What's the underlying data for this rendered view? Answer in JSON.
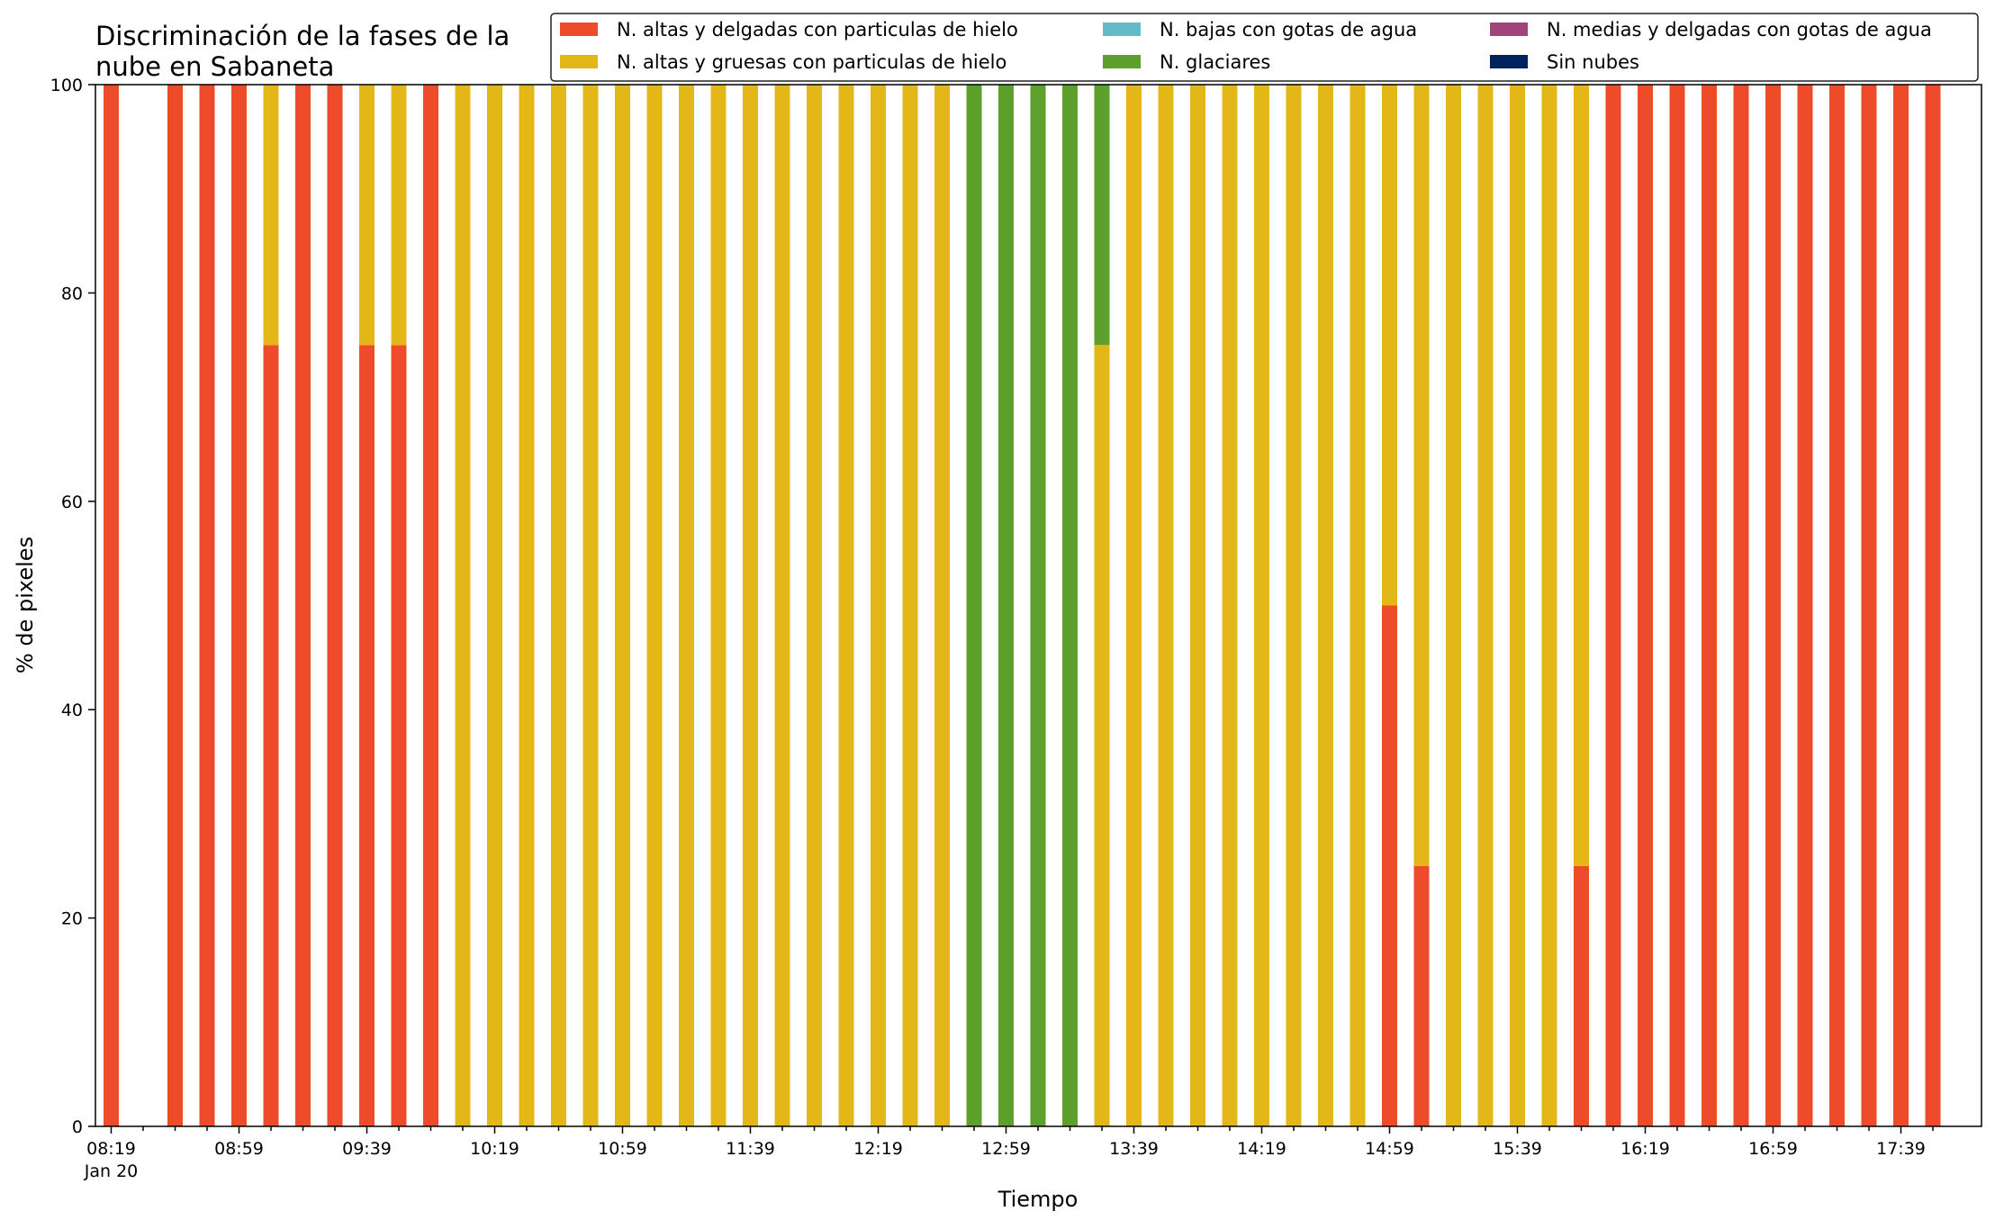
{
  "chart_data": {
    "type": "bar",
    "stacked": true,
    "title_line1": "Discriminación de la fases de la",
    "title_line2": "nube en Sabaneta",
    "xlabel": "Tiempo",
    "ylabel": "% de pixeles",
    "ylim": [
      0,
      100
    ],
    "yticks": [
      "0",
      "20",
      "40",
      "60",
      "80",
      "100"
    ],
    "grid": false,
    "legend_position": "top-right",
    "x_first_label": "08:19",
    "x_first_sublabel": "Jan 20",
    "x_tick_labels": [
      "08:19",
      "08:59",
      "09:39",
      "10:19",
      "10:59",
      "11:39",
      "12:19",
      "12:59",
      "13:39",
      "14:19",
      "14:59",
      "15:39",
      "16:19",
      "16:59",
      "17:39"
    ],
    "series": [
      {
        "name": "N. altas y delgadas con particulas de hielo",
        "color": "#ee4b2b",
        "values": [
          100,
          null,
          100,
          100,
          100,
          75,
          100,
          100,
          75,
          75,
          100,
          0,
          0,
          0,
          0,
          0,
          0,
          0,
          0,
          0,
          0,
          0,
          0,
          0,
          0,
          0,
          0,
          0,
          0,
          0,
          0,
          0,
          0,
          0,
          0,
          0,
          0,
          0,
          0,
          0,
          50,
          25,
          0,
          0,
          0,
          0,
          25,
          100,
          100,
          100,
          100,
          100,
          100,
          100,
          100,
          100,
          100,
          100
        ]
      },
      {
        "name": "N. altas y gruesas con particulas de hielo",
        "color": "#e3b718",
        "values": [
          0,
          null,
          0,
          0,
          0,
          25,
          0,
          0,
          25,
          25,
          0,
          100,
          100,
          100,
          100,
          100,
          100,
          100,
          100,
          100,
          100,
          100,
          100,
          100,
          100,
          100,
          100,
          0,
          0,
          0,
          0,
          75,
          100,
          100,
          100,
          100,
          100,
          100,
          100,
          100,
          50,
          75,
          100,
          100,
          100,
          100,
          75,
          0,
          0,
          0,
          0,
          0,
          0,
          0,
          0,
          0,
          0,
          0
        ]
      },
      {
        "name": "N. bajas con gotas de agua",
        "color": "#62bcc7",
        "values": [
          0,
          null,
          0,
          0,
          0,
          0,
          0,
          0,
          0,
          0,
          0,
          0,
          0,
          0,
          0,
          0,
          0,
          0,
          0,
          0,
          0,
          0,
          0,
          0,
          0,
          0,
          0,
          0,
          0,
          0,
          0,
          0,
          0,
          0,
          0,
          0,
          0,
          0,
          0,
          0,
          0,
          0,
          0,
          0,
          0,
          0,
          0,
          0,
          0,
          0,
          0,
          0,
          0,
          0,
          0,
          0,
          0,
          0
        ]
      },
      {
        "name": "N. glaciares",
        "color": "#5da02c",
        "values": [
          0,
          null,
          0,
          0,
          0,
          0,
          0,
          0,
          0,
          0,
          0,
          0,
          0,
          0,
          0,
          0,
          0,
          0,
          0,
          0,
          0,
          0,
          0,
          0,
          0,
          0,
          0,
          100,
          100,
          100,
          100,
          25,
          0,
          0,
          0,
          0,
          0,
          0,
          0,
          0,
          0,
          0,
          0,
          0,
          0,
          0,
          0,
          0,
          0,
          0,
          0,
          0,
          0,
          0,
          0,
          0,
          0,
          0
        ]
      },
      {
        "name": "N. medias y delgadas con gotas de agua",
        "color": "#a0457a",
        "values": [
          0,
          null,
          0,
          0,
          0,
          0,
          0,
          0,
          0,
          0,
          0,
          0,
          0,
          0,
          0,
          0,
          0,
          0,
          0,
          0,
          0,
          0,
          0,
          0,
          0,
          0,
          0,
          0,
          0,
          0,
          0,
          0,
          0,
          0,
          0,
          0,
          0,
          0,
          0,
          0,
          0,
          0,
          0,
          0,
          0,
          0,
          0,
          0,
          0,
          0,
          0,
          0,
          0,
          0,
          0,
          0,
          0,
          0
        ]
      },
      {
        "name": "Sin nubes",
        "color": "#00235e",
        "values": [
          0,
          null,
          0,
          0,
          0,
          0,
          0,
          0,
          0,
          0,
          0,
          0,
          0,
          0,
          0,
          0,
          0,
          0,
          0,
          0,
          0,
          0,
          0,
          0,
          0,
          0,
          0,
          0,
          0,
          0,
          0,
          0,
          0,
          0,
          0,
          0,
          0,
          0,
          0,
          0,
          0,
          0,
          0,
          0,
          0,
          0,
          0,
          0,
          0,
          0,
          0,
          0,
          0,
          0,
          0,
          0,
          0,
          0
        ]
      }
    ]
  }
}
